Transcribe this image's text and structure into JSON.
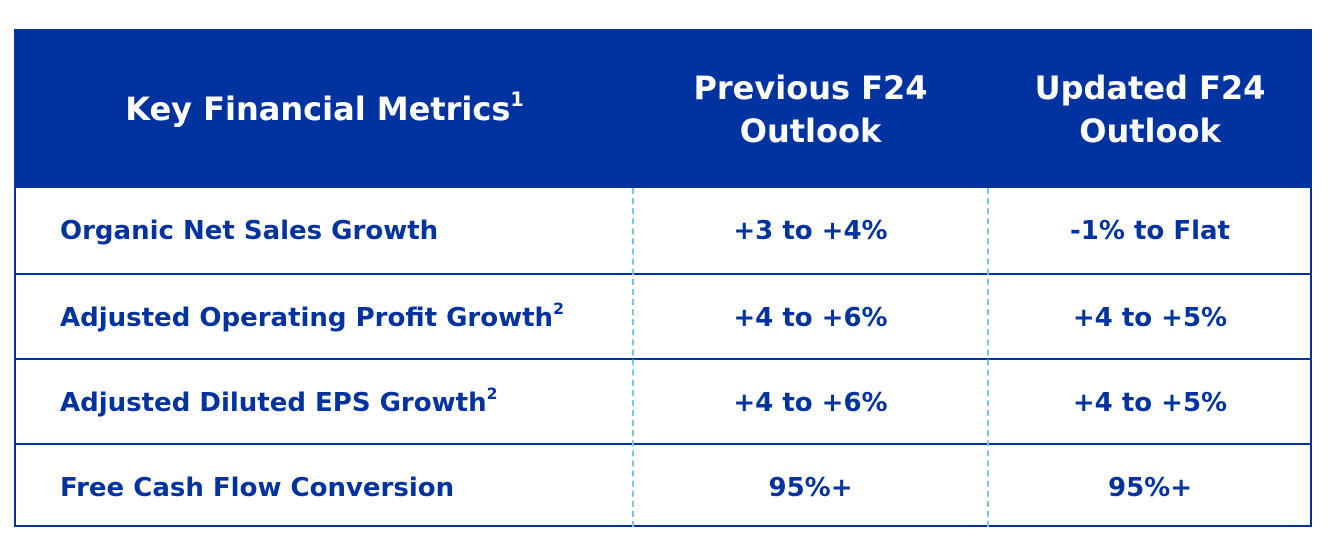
{
  "header": {
    "metric": "Key Financial Metrics",
    "metric_sup": "1",
    "previous_line1": "Previous F24",
    "previous_line2": "Outlook",
    "updated_line1": "Updated F24",
    "updated_line2": "Outlook"
  },
  "rows": [
    {
      "metric": "Organic Net Sales Growth",
      "sup": "",
      "previous": "+3 to +4%",
      "updated": "-1% to Flat"
    },
    {
      "metric": "Adjusted Operating Profit Growth",
      "sup": "2",
      "previous": "+4 to +6%",
      "updated": "+4 to +5%"
    },
    {
      "metric": "Adjusted Diluted EPS Growth",
      "sup": "2",
      "previous": "+4 to +6%",
      "updated": "+4 to +5%"
    },
    {
      "metric": "Free Cash Flow Conversion",
      "sup": "",
      "previous": "95%+",
      "updated": "95%+"
    }
  ],
  "colors": {
    "header_bg": "#0033a0",
    "text": "#0033a0",
    "divider": "#7cc4e8"
  }
}
